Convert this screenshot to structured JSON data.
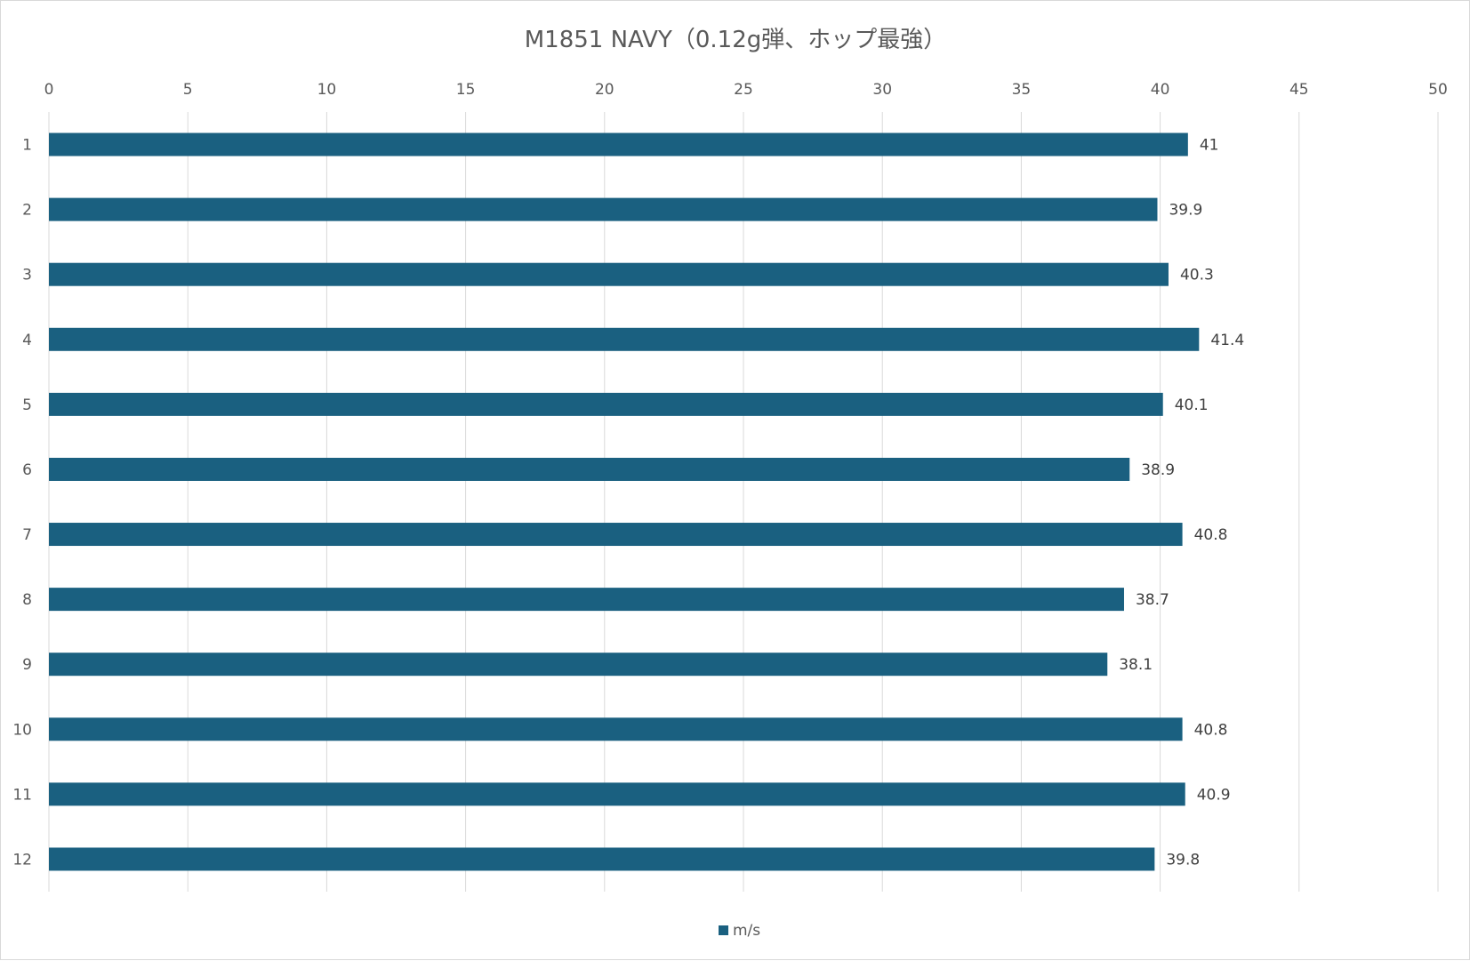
{
  "chart_data": {
    "type": "bar",
    "orientation": "horizontal",
    "title": "M1851 NAVY（0.12g弾、ホップ最強）",
    "xlabel": "",
    "ylabel": "",
    "xlim": [
      0,
      50
    ],
    "x_ticks": [
      "0",
      "5",
      "10",
      "15",
      "20",
      "25",
      "30",
      "35",
      "40",
      "45",
      "50"
    ],
    "x_axis_position": "top",
    "categories": [
      "1",
      "2",
      "3",
      "4",
      "5",
      "6",
      "7",
      "8",
      "9",
      "10",
      "11",
      "12"
    ],
    "series": [
      {
        "name": "m/s",
        "color": "#1a6080",
        "values": [
          41,
          39.9,
          40.3,
          41.4,
          40.1,
          38.9,
          40.8,
          38.7,
          38.1,
          40.8,
          40.9,
          39.8
        ],
        "labels": [
          "41",
          "39.9",
          "40.3",
          "41.4",
          "40.1",
          "38.9",
          "40.8",
          "38.7",
          "38.1",
          "40.8",
          "40.9",
          "39.8"
        ]
      }
    ],
    "grid": true,
    "gridline_color": "#d9d9d9",
    "legend_placement": "bottom",
    "data_labels": true
  }
}
